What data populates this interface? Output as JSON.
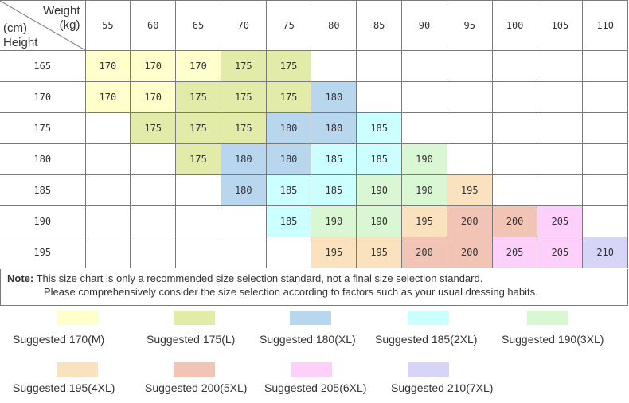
{
  "header": {
    "weight_label": "Weight",
    "weight_unit": "(kg)",
    "height_unit": "(cm)",
    "height_label": "Height",
    "weights": [
      "55",
      "60",
      "65",
      "70",
      "75",
      "80",
      "85",
      "90",
      "95",
      "100",
      "105",
      "110"
    ]
  },
  "rows": [
    {
      "height": "165",
      "cells": [
        "170",
        "170",
        "170",
        "175",
        "175",
        "",
        "",
        "",
        "",
        "",
        "",
        ""
      ]
    },
    {
      "height": "170",
      "cells": [
        "170",
        "170",
        "175",
        "175",
        "175",
        "180",
        "",
        "",
        "",
        "",
        "",
        ""
      ]
    },
    {
      "height": "175",
      "cells": [
        "",
        "175",
        "175",
        "175",
        "180",
        "180",
        "185",
        "",
        "",
        "",
        "",
        ""
      ]
    },
    {
      "height": "180",
      "cells": [
        "",
        "",
        "175",
        "180",
        "180",
        "185",
        "185",
        "190",
        "",
        "",
        "",
        ""
      ]
    },
    {
      "height": "185",
      "cells": [
        "",
        "",
        "",
        "180",
        "185",
        "185",
        "190",
        "190",
        "195",
        "",
        "",
        ""
      ]
    },
    {
      "height": "190",
      "cells": [
        "",
        "",
        "",
        "",
        "185",
        "190",
        "190",
        "195",
        "200",
        "200",
        "205",
        ""
      ]
    },
    {
      "height": "195",
      "cells": [
        "",
        "",
        "",
        "",
        "",
        "195",
        "195",
        "200",
        "200",
        "205",
        "205",
        "210"
      ]
    }
  ],
  "size_colors": {
    "170": "#ffffcc",
    "175": "#e3eba9",
    "180": "#b9d6ef",
    "185": "#ccffff",
    "190": "#d9f7d3",
    "195": "#fbe2bf",
    "200": "#f2c4b6",
    "205": "#fcd0fb",
    "210": "#d6d5f7"
  },
  "note": {
    "label": "Note:",
    "line1": " This size chart is only a recommended size selection standard, not a final size selection standard.",
    "line2": "Please comprehensively consider the size selection according to factors such as your usual dressing habits."
  },
  "legend": [
    {
      "size": "170",
      "label": "Suggested 170(M)",
      "color": "#ffffcc"
    },
    {
      "size": "175",
      "label": "Suggested 175(L)",
      "color": "#e3eba9"
    },
    {
      "size": "180",
      "label": "Suggested 180(XL)",
      "color": "#b9d6ef"
    },
    {
      "size": "185",
      "label": "Suggested 185(2XL)",
      "color": "#ccffff"
    },
    {
      "size": "190",
      "label": "Suggested 190(3XL)",
      "color": "#d9f7d3"
    },
    {
      "size": "195",
      "label": "Suggested 195(4XL)",
      "color": "#fbe2bf"
    },
    {
      "size": "200",
      "label": "Suggested 200(5XL)",
      "color": "#f2c4b6"
    },
    {
      "size": "205",
      "label": "Suggested 205(6XL)",
      "color": "#fcd0fb"
    },
    {
      "size": "210",
      "label": "Suggested 210(7XL)",
      "color": "#d6d5f7"
    }
  ]
}
